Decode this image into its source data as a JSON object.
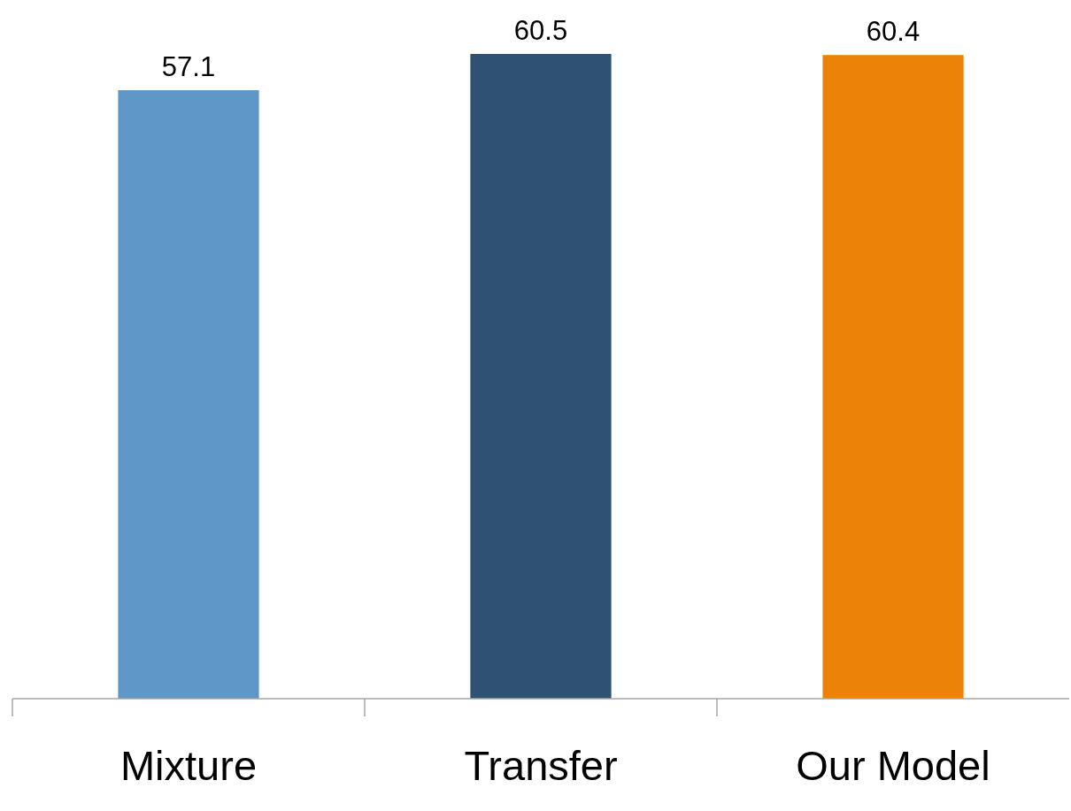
{
  "chart_data": {
    "type": "bar",
    "categories": [
      "Mixture",
      "Transfer",
      "Our Model"
    ],
    "values": [
      57.1,
      60.5,
      60.4
    ],
    "colors": [
      "#6097c9",
      "#2f5274",
      "#ec8207"
    ],
    "tick_labels": "x",
    "data_labels": true
  }
}
